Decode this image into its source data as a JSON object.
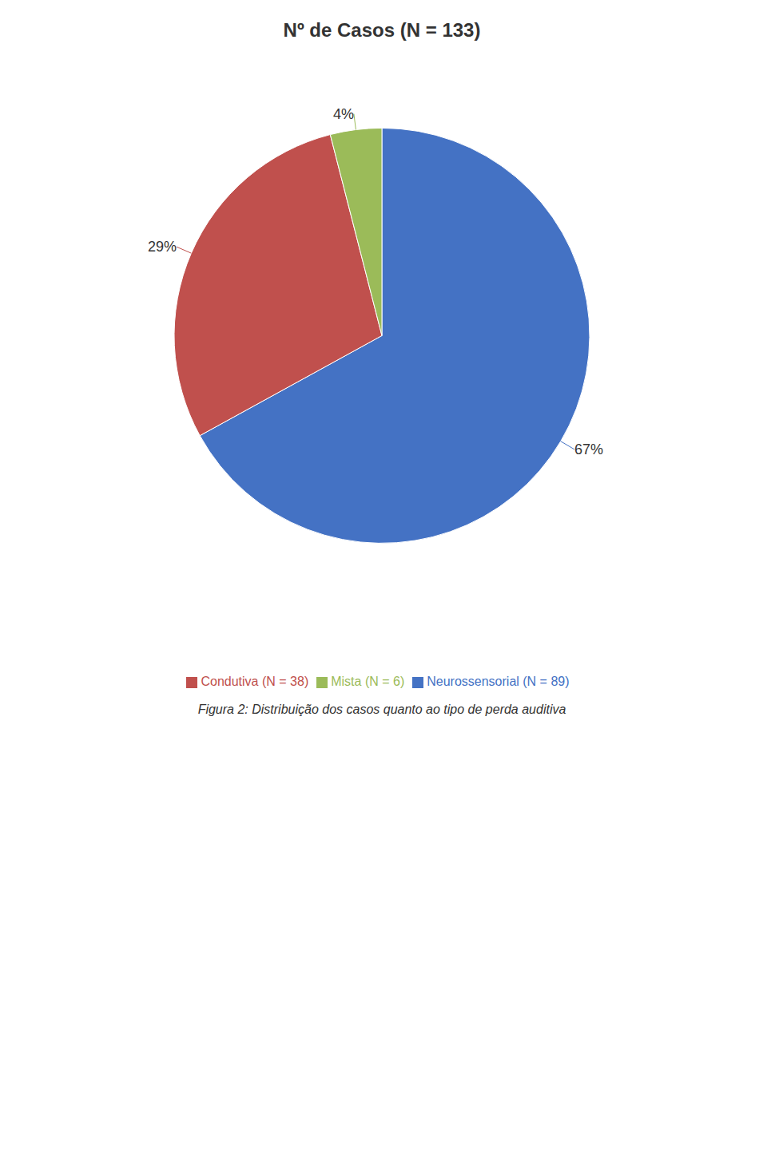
{
  "chart_data": {
    "type": "pie",
    "title": "Nº de Casos (N = 133)",
    "categories": [
      "Neurossensorial (N = 89)",
      "Condutiva (N = 38)",
      "Mista (N = 6)"
    ],
    "values": [
      67,
      29,
      4
    ],
    "value_labels": [
      "67%",
      "29%",
      "4%"
    ],
    "colors": [
      "#4472C4",
      "#C0504D",
      "#9BBB59"
    ],
    "data_labels": true,
    "legend": "bottom",
    "annotations": [
      "Figura 2: Distribuição dos casos quanto ao tipo de perda auditiva"
    ]
  }
}
